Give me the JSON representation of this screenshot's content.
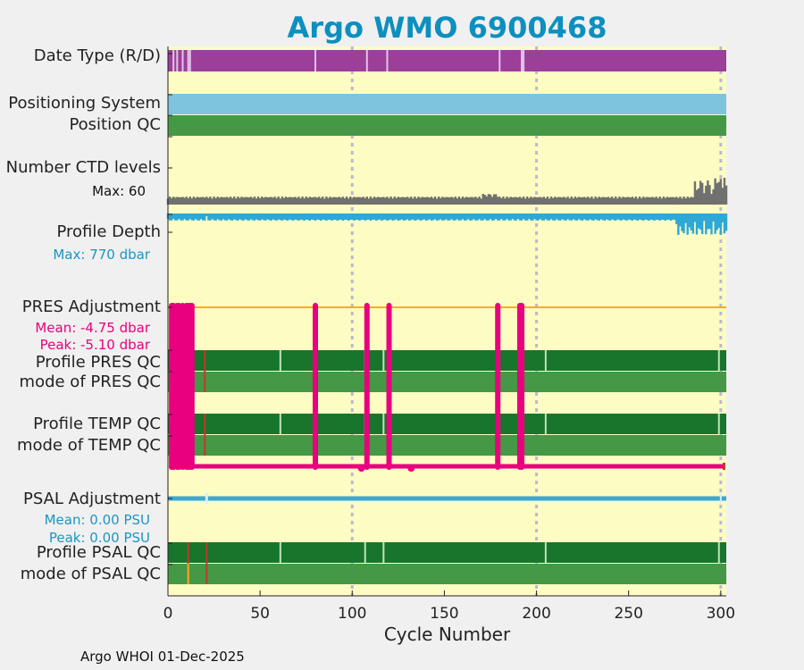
{
  "title": "Argo WMO 6900468",
  "colors": {
    "background": "#fdfcc3",
    "date_type": "#9b3f98",
    "positioning": "#7ec4df",
    "qc_good": "#459845",
    "qc_dark": "#17752c",
    "ctd": "#707070",
    "depth": "#2ea8d6",
    "pres_adj": "#e8007e",
    "psal_adj": "#3aa8d6",
    "orange_line": "#f2b020",
    "title": "#0d8fbf"
  },
  "row_labels": {
    "date_type": "Date Type (R/D)",
    "positioning": "Positioning System",
    "position_qc": "Position QC",
    "ctd_levels": "Number CTD levels",
    "profile_depth": "Profile Depth",
    "pres_adjustment": "PRES Adjustment",
    "profile_pres_qc": "Profile PRES QC",
    "mode_pres_qc": "mode of PRES QC",
    "profile_temp_qc": "Profile TEMP QC",
    "mode_temp_qc": "mode of TEMP QC",
    "psal_adjustment": "PSAL Adjustment",
    "profile_psal_qc": "Profile PSAL QC",
    "mode_psal_qc": "mode of PSAL QC"
  },
  "stats": {
    "ctd_max": "Max: 60",
    "depth_max": "Max:  770 dbar",
    "pres_mean": "Mean: -4.75 dbar",
    "pres_peak": "Peak: -5.10 dbar",
    "psal_mean": "Mean: 0.00 PSU",
    "psal_peak": "Peak: 0.00 PSU"
  },
  "chart_data": {
    "type": "timeline",
    "xlabel": "Cycle Number",
    "xlim": [
      0,
      303
    ],
    "xticks": [
      0,
      50,
      100,
      150,
      200,
      250,
      300
    ],
    "xtick_labels": [
      "0",
      "50",
      "100",
      "150",
      "200",
      "250",
      "300"
    ],
    "dashed_gridlines_at": [
      100,
      200,
      300
    ],
    "date_type_light_cycles": [
      3,
      5,
      8,
      11,
      12,
      80,
      108,
      119,
      180,
      192,
      193
    ],
    "ctd_levels_max": 60,
    "profile_depth_max_dbar": 770,
    "pres_adjustment_spike_cycles": [
      2,
      3,
      5,
      6,
      8,
      10,
      11,
      12,
      13,
      80,
      108,
      120,
      179,
      191,
      192
    ],
    "pres_qc_light_cycles": [
      61,
      107,
      117,
      205,
      299
    ],
    "pres_qc_red_cycles": [
      20
    ],
    "psal_qc_light_cycles": [
      61,
      107,
      117,
      205,
      299
    ],
    "psal_qc_red_cycles": [
      11,
      21
    ],
    "psal_qc_orange_cycles": [
      11
    ],
    "pres_adjustment_mean_dbar": -4.75,
    "pres_adjustment_peak_dbar": -5.1,
    "psal_adjustment_mean_psu": 0.0,
    "psal_adjustment_peak_psu": 0.0
  },
  "footer": "Argo WHOI 01-Dec-2025"
}
